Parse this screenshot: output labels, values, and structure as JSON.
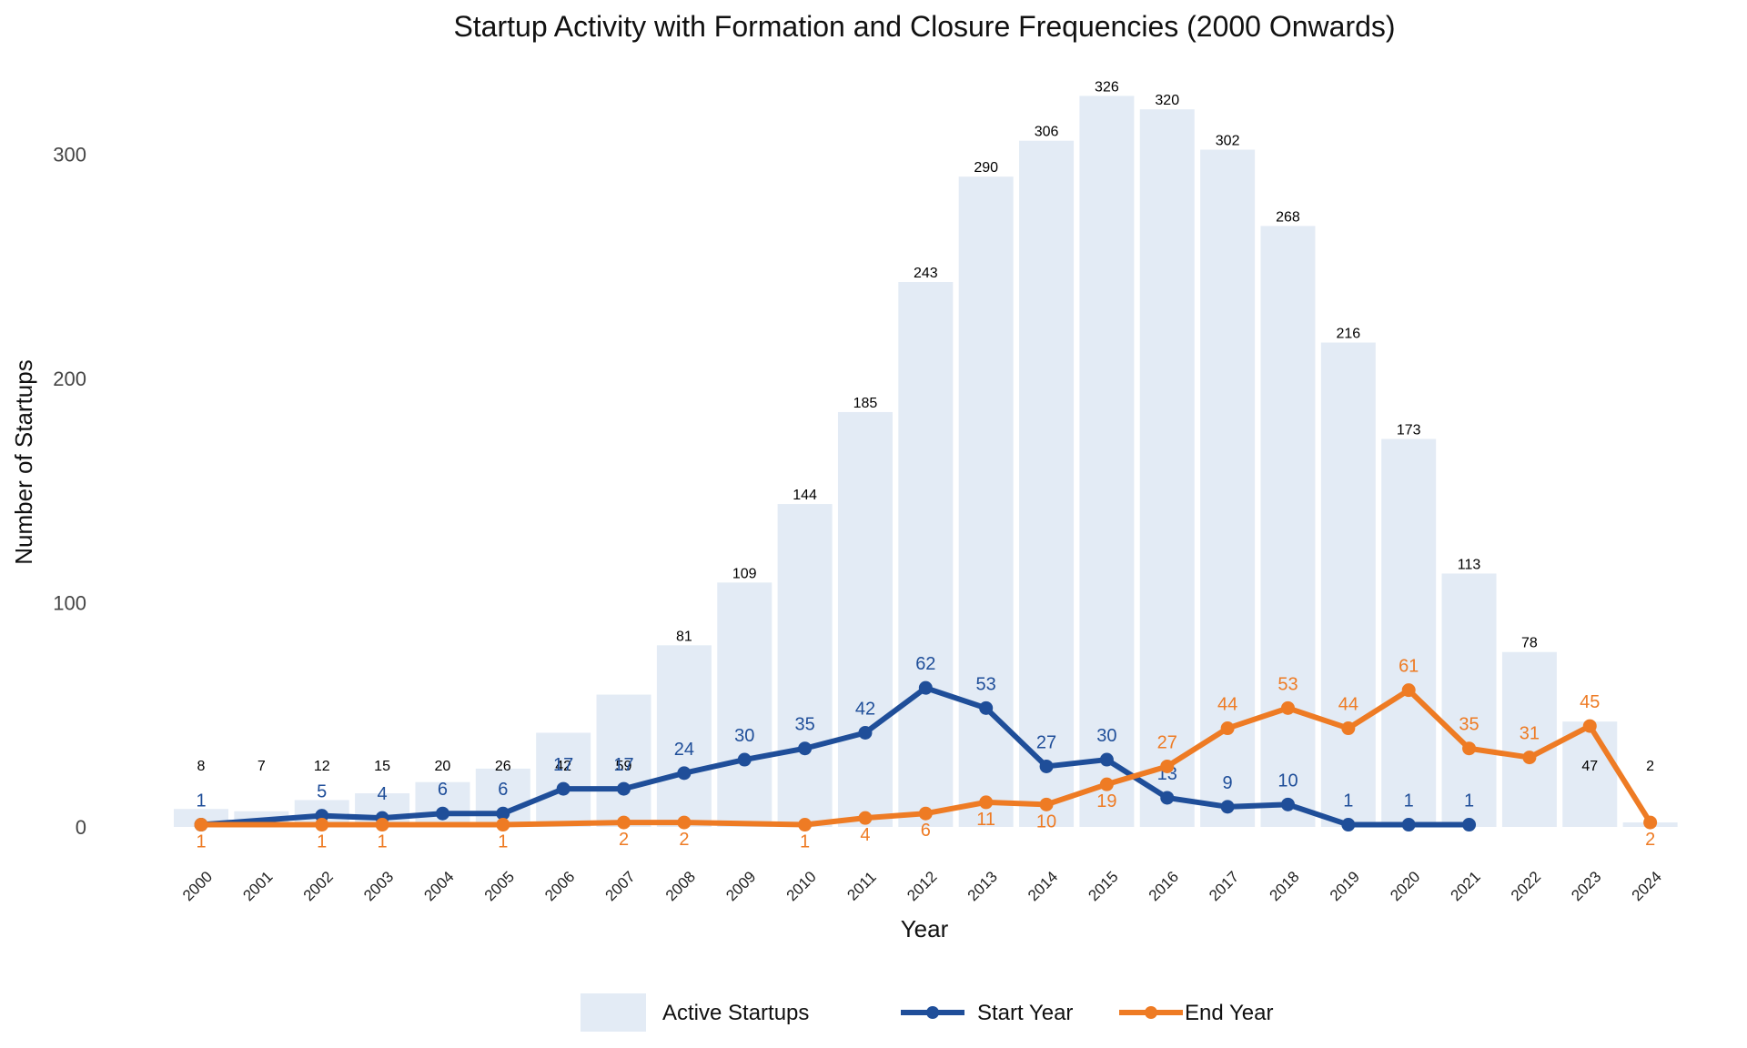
{
  "chart_data": {
    "type": "bar",
    "title": "Startup Activity with Formation and Closure Frequencies (2000 Onwards)",
    "xlabel": "Year",
    "ylabel": "Number of Startups",
    "ylim": [
      -10,
      336
    ],
    "yticks": [
      0,
      100,
      200,
      300
    ],
    "grid": false,
    "legend_position": "bottom",
    "categories": [
      "2000",
      "2001",
      "2002",
      "2003",
      "2004",
      "2005",
      "2006",
      "2007",
      "2008",
      "2009",
      "2010",
      "2011",
      "2012",
      "2013",
      "2014",
      "2015",
      "2016",
      "2017",
      "2018",
      "2019",
      "2020",
      "2021",
      "2022",
      "2023",
      "2024"
    ],
    "bars": {
      "name": "Active Startups",
      "color": "#e3ebf5",
      "values": [
        8,
        7,
        12,
        15,
        20,
        26,
        42,
        59,
        81,
        109,
        144,
        185,
        243,
        290,
        306,
        326,
        320,
        302,
        268,
        216,
        173,
        113,
        78,
        47,
        2
      ]
    },
    "series": [
      {
        "name": "Start Year",
        "type": "line",
        "color": "#1f4e99",
        "points": [
          {
            "x": "2000",
            "y": 1
          },
          {
            "x": "2002",
            "y": 5
          },
          {
            "x": "2003",
            "y": 4
          },
          {
            "x": "2004",
            "y": 6
          },
          {
            "x": "2005",
            "y": 6
          },
          {
            "x": "2006",
            "y": 17
          },
          {
            "x": "2007",
            "y": 17
          },
          {
            "x": "2008",
            "y": 24
          },
          {
            "x": "2009",
            "y": 30
          },
          {
            "x": "2010",
            "y": 35
          },
          {
            "x": "2011",
            "y": 42
          },
          {
            "x": "2012",
            "y": 62
          },
          {
            "x": "2013",
            "y": 53
          },
          {
            "x": "2014",
            "y": 27
          },
          {
            "x": "2015",
            "y": 30
          },
          {
            "x": "2016",
            "y": 13
          },
          {
            "x": "2017",
            "y": 9
          },
          {
            "x": "2018",
            "y": 10
          },
          {
            "x": "2019",
            "y": 1
          },
          {
            "x": "2020",
            "y": 1
          },
          {
            "x": "2021",
            "y": 1
          }
        ]
      },
      {
        "name": "End Year",
        "type": "line",
        "color": "#ee7b24",
        "points": [
          {
            "x": "2000",
            "y": 1
          },
          {
            "x": "2002",
            "y": 1
          },
          {
            "x": "2003",
            "y": 1
          },
          {
            "x": "2005",
            "y": 1
          },
          {
            "x": "2007",
            "y": 2
          },
          {
            "x": "2008",
            "y": 2
          },
          {
            "x": "2010",
            "y": 1
          },
          {
            "x": "2011",
            "y": 4
          },
          {
            "x": "2012",
            "y": 6
          },
          {
            "x": "2013",
            "y": 11
          },
          {
            "x": "2014",
            "y": 10
          },
          {
            "x": "2015",
            "y": 19
          },
          {
            "x": "2016",
            "y": 27
          },
          {
            "x": "2017",
            "y": 44
          },
          {
            "x": "2018",
            "y": 53
          },
          {
            "x": "2019",
            "y": 44
          },
          {
            "x": "2020",
            "y": 61
          },
          {
            "x": "2021",
            "y": 35
          },
          {
            "x": "2022",
            "y": 31
          },
          {
            "x": "2023",
            "y": 45
          },
          {
            "x": "2024",
            "y": 2
          }
        ]
      }
    ]
  }
}
